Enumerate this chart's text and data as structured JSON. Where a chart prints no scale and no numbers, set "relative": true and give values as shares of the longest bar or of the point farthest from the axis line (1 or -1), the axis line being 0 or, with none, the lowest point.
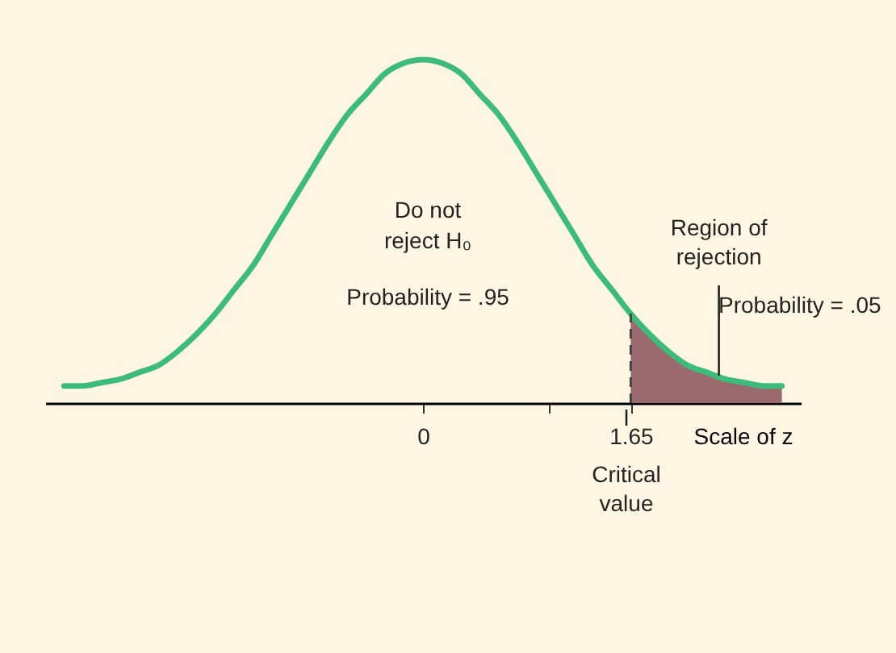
{
  "chart_data": {
    "type": "line",
    "relative": true,
    "xlim": [
      -3,
      3
    ],
    "xticks": [
      0,
      {
        "value": 1,
        "label": null
      },
      1.65
    ],
    "xlabel": "Scale of z",
    "grid": false,
    "marker": "none",
    "line_style": "solid",
    "tick_labels": "x",
    "series": [
      {
        "color": "#3dbb78",
        "x": [
          -2.85,
          -2.7,
          -2.55,
          -2.4,
          -2.25,
          -2.1,
          -1.95,
          -1.8,
          -1.65,
          -1.5,
          -1.35,
          -1.2,
          -1.05,
          -0.9,
          -0.75,
          -0.6,
          -0.45,
          -0.3,
          -0.15,
          0,
          0.15,
          0.3,
          0.45,
          0.6,
          0.75,
          0.9,
          1.05,
          1.2,
          1.35,
          1.5,
          1.65,
          1.8,
          1.95,
          2.1,
          2.25,
          2.4,
          2.55,
          2.7,
          2.85
        ],
        "values": [
          0.05,
          0.05,
          0.06,
          0.07,
          0.09,
          0.11,
          0.15,
          0.2,
          0.26,
          0.33,
          0.4,
          0.49,
          0.58,
          0.67,
          0.76,
          0.84,
          0.9,
          0.96,
          0.99,
          1,
          0.99,
          0.96,
          0.9,
          0.84,
          0.76,
          0.67,
          0.58,
          0.49,
          0.4,
          0.33,
          0.26,
          0.2,
          0.15,
          0.11,
          0.09,
          0.07,
          0.06,
          0.05,
          0.05
        ]
      },
      {
        "type": "area",
        "color": "#9a6a6e",
        "x": [
          1.65,
          1.8,
          1.95,
          2.1,
          2.25,
          2.4,
          2.55,
          2.7,
          2.85
        ],
        "values": [
          0.26,
          0.2,
          0.15,
          0.11,
          0.09,
          0.07,
          0.06,
          0.05,
          0.05
        ]
      }
    ],
    "ref_lines": [
      {
        "axis": "x",
        "value": 1.65,
        "line_style": "dashed",
        "color": "#444444"
      }
    ],
    "annotations": [
      "Do not\nreject H₀",
      "Probability = .95",
      "Probability = .05",
      "Critical\nvalue",
      {
        "text": "Region of\nrejection",
        "x": 2.35,
        "y": 0.08
      }
    ]
  }
}
